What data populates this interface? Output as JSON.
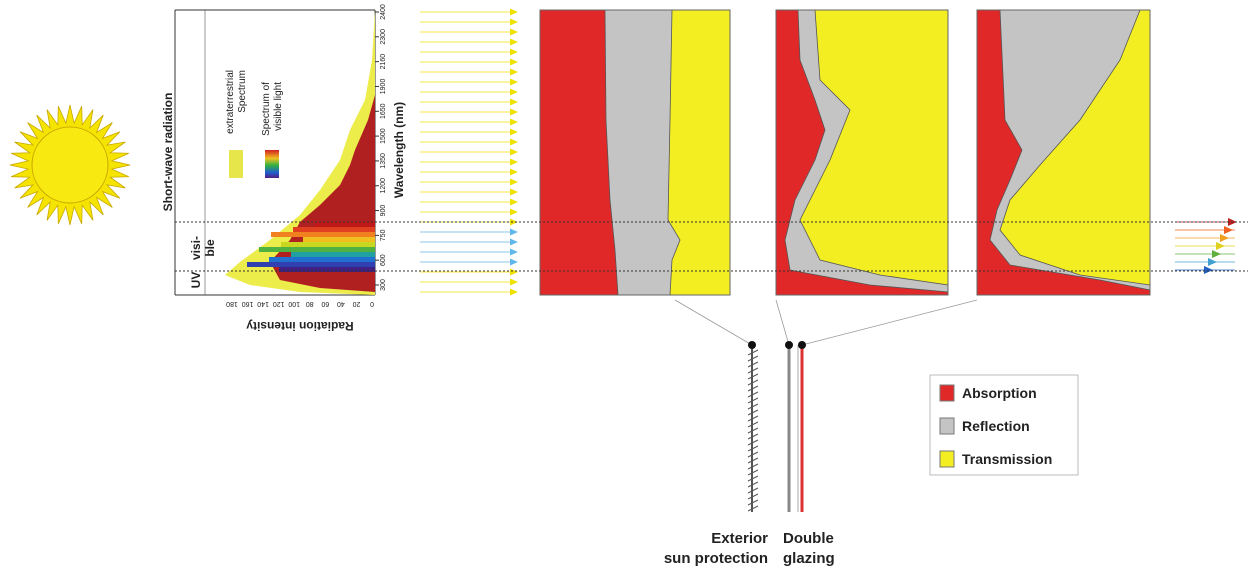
{
  "labels": {
    "short_wave": "Short-wave radiation",
    "uv": "UV",
    "visible": [
      "visi-",
      "ble"
    ],
    "wavelength": "Wavelength (nm)",
    "intensity": "Radiation intensity"
  },
  "spectrum_legend": {
    "extraterrestrial": [
      "extraterrestrial",
      "Spectrum"
    ],
    "visible_light": [
      "Spectrum of",
      "visible light"
    ]
  },
  "wavelength_ticks": [
    "2400",
    "2300",
    "2160",
    "1900",
    "1650",
    "1500",
    "1350",
    "1200",
    "900",
    "750",
    "600",
    "300"
  ],
  "intensity_ticks": [
    "180",
    "160",
    "140",
    "120",
    "100",
    "80",
    "60",
    "40",
    "20",
    "0"
  ],
  "legend": [
    "Absorption",
    "Reflection",
    "Transmission"
  ],
  "layers": {
    "exterior": [
      "Exterior",
      "sun protection"
    ],
    "glazing": [
      "Double",
      "glazing"
    ]
  }
}
